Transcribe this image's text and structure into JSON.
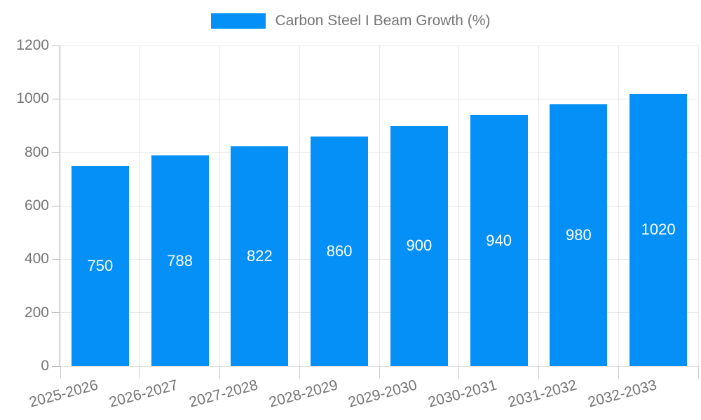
{
  "legend": {
    "label": "Carbon Steel I Beam Growth (%)"
  },
  "chart_data": {
    "type": "bar",
    "title": "Carbon Steel I Beam Growth (%)",
    "categories": [
      "2025-2026",
      "2026-2027",
      "2027-2028",
      "2028-2029",
      "2029-2030",
      "2030-2031",
      "2031-2032",
      "2032-2033"
    ],
    "values": [
      750,
      788,
      822,
      860,
      900,
      940,
      980,
      1020
    ],
    "xlabel": "",
    "ylabel": "",
    "ylim": [
      0,
      1200
    ],
    "yticks": [
      0,
      200,
      400,
      600,
      800,
      1000,
      1200
    ],
    "grid": true,
    "legend_position": "top",
    "bar_color": "#0590F8",
    "value_label_color": "#FFFFFF",
    "axis_text_color": "#757575"
  }
}
